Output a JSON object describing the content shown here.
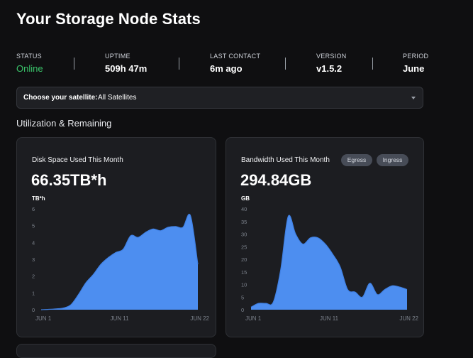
{
  "page": {
    "title": "Your Storage Node Stats"
  },
  "stats": [
    {
      "label": "STATUS",
      "value": "Online"
    },
    {
      "label": "UPTIME",
      "value": "509h 47m"
    },
    {
      "label": "LAST CONTACT",
      "value": "6m ago"
    },
    {
      "label": "VERSION",
      "value": "v1.5.2"
    },
    {
      "label": "PERIOD",
      "value": "June"
    }
  ],
  "colors": {
    "online": "#3ac46a",
    "chart_fill": "#4d8ef0",
    "chart_line": "#3f80e4"
  },
  "satellite": {
    "label": "Choose your satellite:",
    "value": "All Satellites"
  },
  "section": {
    "title": "Utilization & Remaining"
  },
  "disk": {
    "title": "Disk Space Used This Month",
    "value": "66.35TB*h"
  },
  "bandwidth": {
    "title": "Bandwidth Used This Month",
    "value": "294.84GB",
    "egress": "Egress",
    "ingress": "Ingress"
  },
  "chart_data": [
    {
      "type": "area",
      "ylabel": "TB*h",
      "ylim": [
        0,
        6
      ],
      "yticks": [
        "6",
        "5",
        "4",
        "3",
        "2",
        "1",
        "0"
      ],
      "xticks": [
        "JUN 1",
        "JUN 11",
        "JUN 22"
      ],
      "x": [
        1,
        2,
        3,
        4,
        5,
        6,
        7,
        8,
        9,
        10,
        11,
        12,
        13,
        14,
        15,
        16,
        17,
        18,
        19,
        20,
        21,
        22
      ],
      "values": [
        0.0,
        0.02,
        0.05,
        0.1,
        0.3,
        0.9,
        1.6,
        2.1,
        2.7,
        3.1,
        3.4,
        3.6,
        4.4,
        4.3,
        4.6,
        4.8,
        4.7,
        4.9,
        4.95,
        4.9,
        5.6,
        2.7
      ],
      "grid": false
    },
    {
      "type": "area",
      "ylabel": "GB",
      "ylim": [
        0,
        40
      ],
      "yticks": [
        "40",
        "35",
        "30",
        "25",
        "20",
        "15",
        "10",
        "5",
        "0"
      ],
      "xticks": [
        "JUN 1",
        "JUN 11",
        "JUN 22"
      ],
      "x": [
        1,
        2,
        3,
        4,
        5,
        6,
        7,
        8,
        9,
        10,
        11,
        12,
        13,
        14,
        15,
        16,
        17,
        18,
        19,
        20,
        21,
        22
      ],
      "values": [
        1.0,
        2.5,
        2.5,
        3.0,
        16.0,
        37.0,
        30.0,
        26.0,
        28.5,
        28.5,
        26.0,
        22.0,
        17.0,
        8.0,
        7.0,
        5.0,
        10.5,
        6.0,
        8.0,
        9.5,
        9.0,
        8.0
      ],
      "grid": false
    }
  ]
}
